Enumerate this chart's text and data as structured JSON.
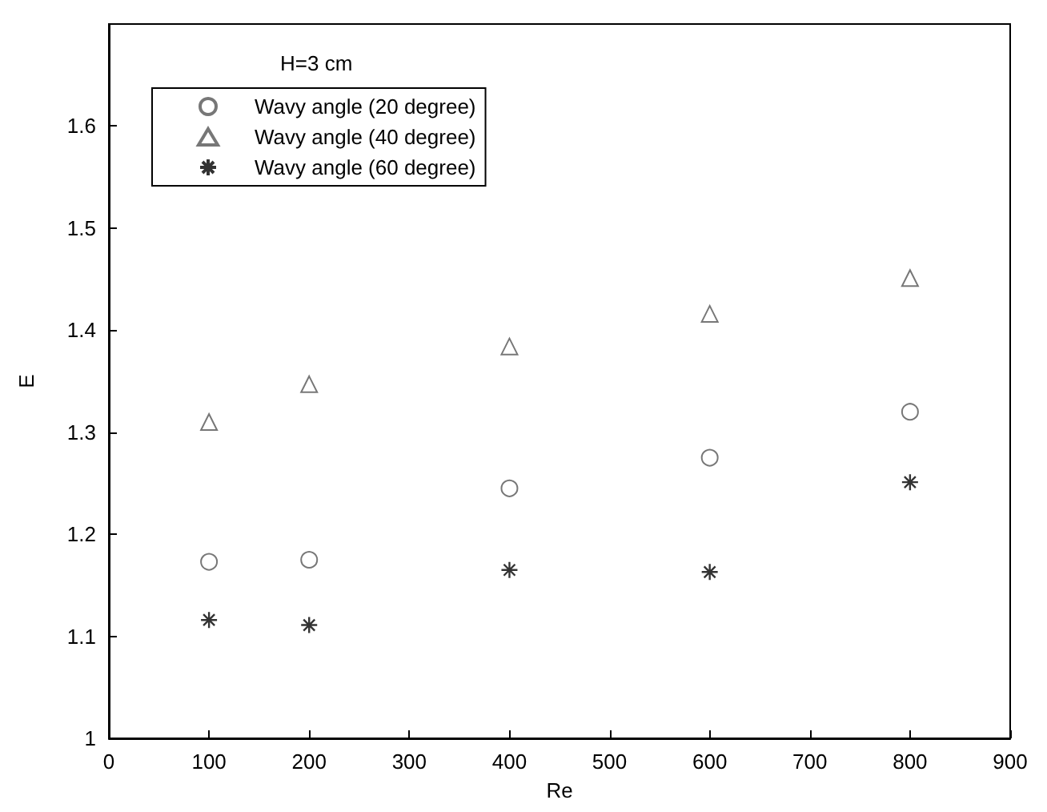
{
  "chart_data": {
    "type": "scatter",
    "xlabel": "Re",
    "ylabel": "E",
    "legend_title": "H=3 cm",
    "x": [
      100,
      200,
      400,
      600,
      800
    ],
    "series": [
      {
        "name": "Wavy angle (20 degree)",
        "color": "#555555",
        "marker": "circle",
        "values": [
          1.173,
          1.175,
          1.245,
          1.275,
          1.32
        ]
      },
      {
        "name": "Wavy angle (40 degree)",
        "color": "#555555",
        "marker": "triangle",
        "values": [
          1.31,
          1.347,
          1.384,
          1.416,
          1.451
        ]
      },
      {
        "name": "Wavy angle (60 degree)",
        "color": "#000000",
        "marker": "cross",
        "values": [
          1.116,
          1.111,
          1.165,
          1.163,
          1.251
        ]
      }
    ],
    "xlim": [
      0,
      900
    ],
    "xticks": [
      0,
      100,
      200,
      300,
      400,
      500,
      600,
      700,
      800,
      900
    ],
    "ylim": [
      1,
      1.7
    ],
    "yticks": [
      1,
      1.1,
      1.2,
      1.3,
      1.4,
      1.5,
      1.6
    ],
    "grid": false,
    "legend": "top left"
  }
}
